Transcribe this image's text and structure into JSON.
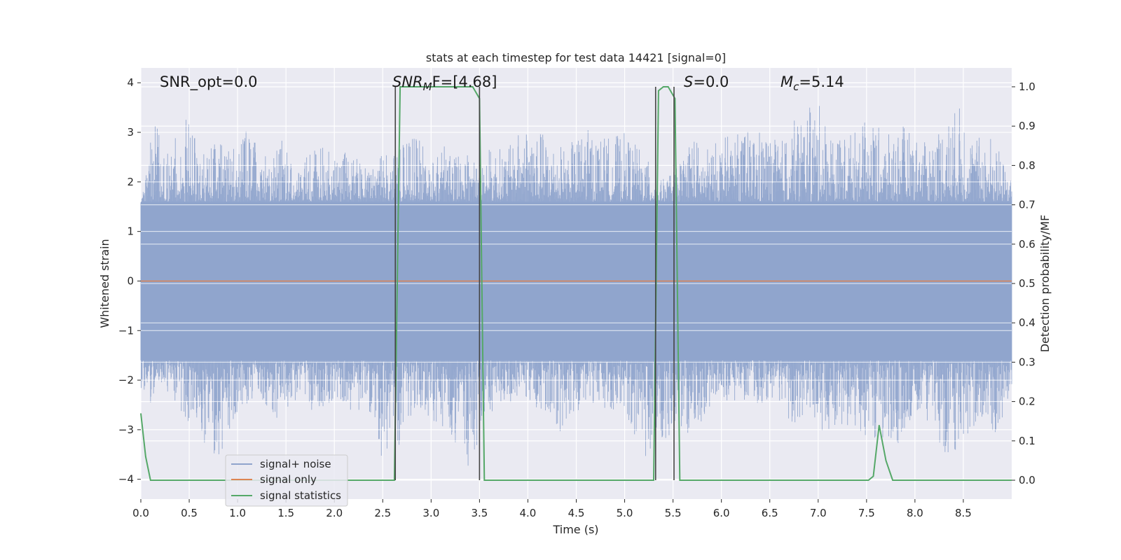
{
  "chart_data": {
    "type": "line",
    "title": "stats at each timestep for test data 14421 [signal=0]",
    "xlabel": "Time (s)",
    "ylabel": "Whitened strain",
    "y2label": "Detection probability/MF",
    "xlim": [
      0,
      9.0
    ],
    "ylim": [
      -4.4,
      4.3
    ],
    "y2lim": [
      -0.048,
      1.048
    ],
    "x_ticks": [
      0.0,
      0.5,
      1.0,
      1.5,
      2.0,
      2.5,
      3.0,
      3.5,
      4.0,
      4.5,
      5.0,
      5.5,
      6.0,
      6.5,
      7.0,
      7.5,
      8.0,
      8.5
    ],
    "x_tick_labels": [
      "0.0",
      "0.5",
      "1.0",
      "1.5",
      "2.0",
      "2.5",
      "3.0",
      "3.5",
      "4.0",
      "4.5",
      "5.0",
      "5.5",
      "6.0",
      "6.5",
      "7.0",
      "7.5",
      "8.0",
      "8.5"
    ],
    "y_ticks": [
      -4,
      -3,
      -2,
      -1,
      0,
      1,
      2,
      3,
      4
    ],
    "y_tick_labels": [
      "−4",
      "−3",
      "−2",
      "−1",
      "0",
      "1",
      "2",
      "3",
      "4"
    ],
    "y2_ticks": [
      0.0,
      0.1,
      0.2,
      0.3,
      0.4,
      0.5,
      0.6,
      0.7,
      0.8,
      0.9,
      1.0
    ],
    "y2_tick_labels": [
      "0.0",
      "0.1",
      "0.2",
      "0.3",
      "0.4",
      "0.5",
      "0.6",
      "0.7",
      "0.8",
      "0.9",
      "1.0"
    ],
    "grid": true,
    "legend_position": "lower-left",
    "legend": [
      {
        "label": "signal+ noise",
        "color": "#8fa4cc"
      },
      {
        "label": "signal only",
        "color": "#dd8452"
      },
      {
        "label": "signal statistics",
        "color": "#55a868"
      }
    ],
    "annotations": {
      "snr_opt": "SNR_opt=0.0",
      "snr_mf_main": "SNR",
      "snr_mf_sub": "M",
      "snr_mf_rest": "F=[4.68]",
      "s_main": "S",
      "s_rest": "=0.0",
      "mc_main": "M",
      "mc_sub": "c",
      "mc_rest": "=5.14"
    },
    "noise_series": {
      "name": "signal+ noise",
      "axis": "left",
      "color": "#8fa4cc",
      "upper_envelope": [
        [
          0.0,
          1.5
        ],
        [
          0.08,
          2.8
        ],
        [
          0.18,
          3.35
        ],
        [
          0.3,
          2.6
        ],
        [
          0.5,
          3.6
        ],
        [
          0.6,
          2.5
        ],
        [
          0.75,
          2.9
        ],
        [
          0.95,
          2.7
        ],
        [
          1.1,
          3.1
        ],
        [
          1.3,
          2.6
        ],
        [
          1.45,
          3.0
        ],
        [
          1.6,
          2.1
        ],
        [
          1.8,
          2.8
        ],
        [
          2.0,
          2.6
        ],
        [
          2.2,
          2.6
        ],
        [
          2.35,
          2.2
        ],
        [
          2.5,
          2.7
        ],
        [
          2.6,
          2.5
        ],
        [
          2.8,
          3.0
        ],
        [
          3.0,
          2.6
        ],
        [
          3.2,
          2.8
        ],
        [
          3.4,
          2.5
        ],
        [
          3.6,
          2.7
        ],
        [
          3.8,
          2.7
        ],
        [
          4.0,
          3.3
        ],
        [
          4.2,
          2.9
        ],
        [
          4.4,
          2.7
        ],
        [
          4.6,
          3.1
        ],
        [
          4.8,
          2.9
        ],
        [
          5.0,
          3.0
        ],
        [
          5.2,
          2.6
        ],
        [
          5.35,
          2.0
        ],
        [
          5.55,
          2.3
        ],
        [
          5.7,
          3.1
        ],
        [
          5.8,
          2.6
        ],
        [
          6.0,
          2.9
        ],
        [
          6.2,
          3.0
        ],
        [
          6.4,
          3.1
        ],
        [
          6.6,
          2.8
        ],
        [
          6.8,
          3.4
        ],
        [
          7.0,
          3.6
        ],
        [
          7.2,
          2.9
        ],
        [
          7.4,
          3.1
        ],
        [
          7.55,
          3.3
        ],
        [
          7.7,
          2.9
        ],
        [
          7.85,
          3.2
        ],
        [
          8.1,
          2.8
        ],
        [
          8.3,
          3.3
        ],
        [
          8.5,
          3.6
        ],
        [
          8.6,
          2.9
        ],
        [
          8.8,
          3.0
        ],
        [
          9.0,
          2.0
        ]
      ],
      "lower_envelope": [
        [
          0.0,
          -2.5
        ],
        [
          0.1,
          -2.5
        ],
        [
          0.2,
          -2.0
        ],
        [
          0.4,
          -2.6
        ],
        [
          0.6,
          -3.2
        ],
        [
          0.7,
          -3.4
        ],
        [
          0.8,
          -3.6
        ],
        [
          1.0,
          -2.7
        ],
        [
          1.2,
          -2.3
        ],
        [
          1.4,
          -2.8
        ],
        [
          1.6,
          -2.4
        ],
        [
          1.8,
          -2.7
        ],
        [
          2.0,
          -2.4
        ],
        [
          2.2,
          -2.7
        ],
        [
          2.4,
          -2.7
        ],
        [
          2.5,
          -3.8
        ],
        [
          2.65,
          -3.4
        ],
        [
          2.85,
          -2.6
        ],
        [
          3.1,
          -3.2
        ],
        [
          3.3,
          -3.3
        ],
        [
          3.4,
          -4.0
        ],
        [
          3.55,
          -3.0
        ],
        [
          3.7,
          -2.5
        ],
        [
          3.95,
          -2.4
        ],
        [
          4.2,
          -2.7
        ],
        [
          4.4,
          -3.2
        ],
        [
          4.6,
          -2.4
        ],
        [
          4.8,
          -2.6
        ],
        [
          5.0,
          -2.6
        ],
        [
          5.2,
          -3.6
        ],
        [
          5.5,
          -3.1
        ],
        [
          5.7,
          -3.3
        ],
        [
          5.9,
          -2.5
        ],
        [
          6.2,
          -2.4
        ],
        [
          6.5,
          -2.5
        ],
        [
          6.7,
          -3.0
        ],
        [
          6.9,
          -2.6
        ],
        [
          7.0,
          -3.1
        ],
        [
          7.2,
          -2.9
        ],
        [
          7.4,
          -3.0
        ],
        [
          7.6,
          -3.3
        ],
        [
          7.8,
          -3.4
        ],
        [
          8.0,
          -2.6
        ],
        [
          8.2,
          -3.0
        ],
        [
          8.35,
          -3.7
        ],
        [
          8.5,
          -3.2
        ],
        [
          8.7,
          -2.8
        ],
        [
          8.9,
          -3.4
        ],
        [
          9.0,
          -2.3
        ]
      ],
      "band": [
        -1.6,
        1.6
      ]
    },
    "series": [
      {
        "name": "signal only",
        "axis": "left",
        "color": "#dd8452",
        "x": [
          0.0,
          9.0
        ],
        "y": [
          0.0,
          0.0
        ]
      },
      {
        "name": "signal statistics",
        "axis": "right",
        "color": "#55a868",
        "x": [
          0.0,
          0.05,
          0.1,
          0.15,
          2.62,
          2.68,
          2.73,
          3.43,
          3.5,
          3.55,
          3.6,
          5.3,
          5.35,
          5.4,
          5.45,
          5.52,
          5.57,
          5.62,
          7.52,
          7.57,
          7.63,
          7.7,
          7.77,
          9.0
        ],
        "y": [
          0.17,
          0.06,
          0.0,
          0.0,
          0.0,
          1.0,
          1.0,
          1.0,
          0.97,
          0.0,
          0.0,
          0.0,
          0.99,
          1.0,
          1.0,
          0.97,
          0.0,
          0.0,
          0.0,
          0.01,
          0.14,
          0.05,
          0.0,
          0.0
        ]
      }
    ],
    "vlines": {
      "color": "#444444",
      "x": [
        2.63,
        3.5,
        5.32,
        5.51
      ]
    }
  }
}
